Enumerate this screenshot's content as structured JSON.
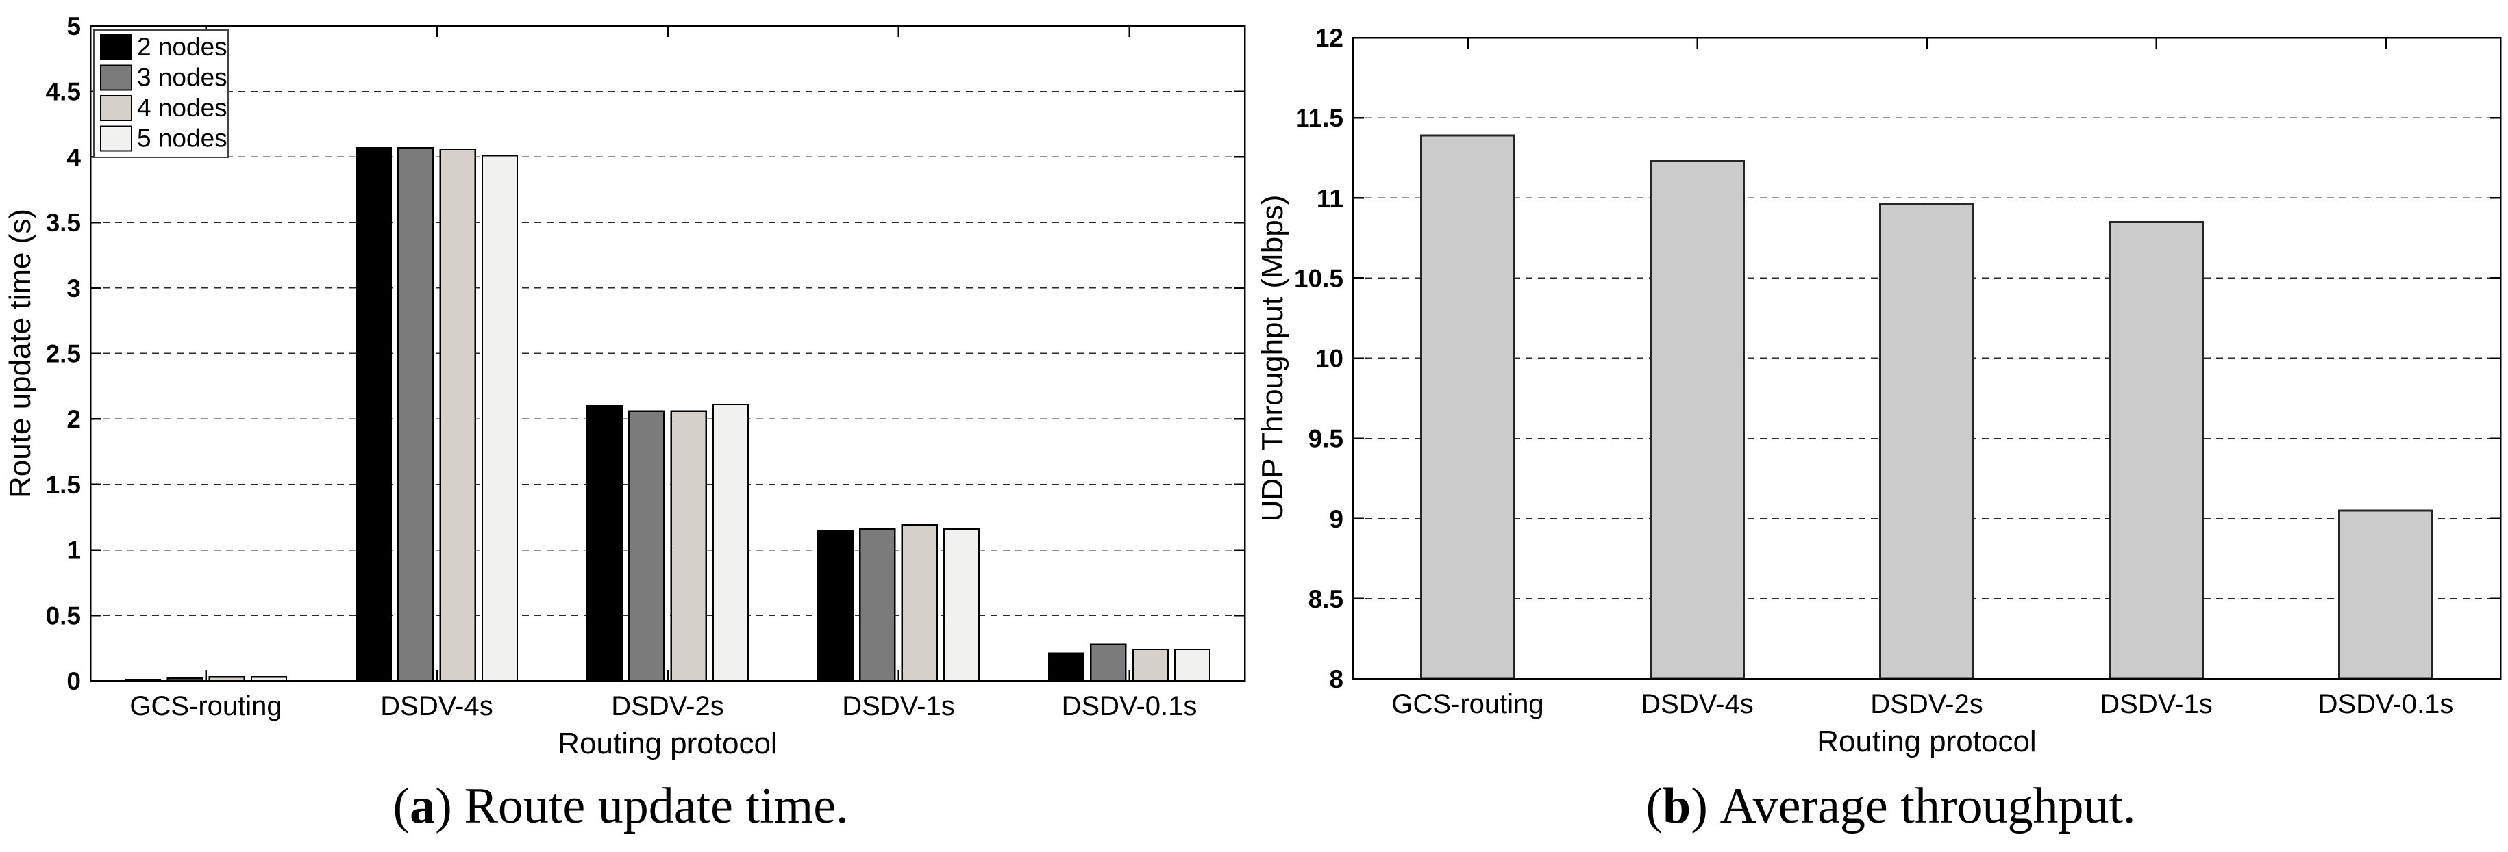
{
  "figure": {
    "captions": {
      "a": {
        "open": "(",
        "letter": "a",
        "close": ")",
        "text": "Route update time."
      },
      "b": {
        "open": "(",
        "letter": "b",
        "close": ")",
        "text": "Average throughput."
      }
    }
  },
  "style": {
    "axis_color": "#000000",
    "grid_color": "#2a2a2a",
    "background": "#ffffff"
  },
  "chart_data": [
    {
      "id": "route-update-time",
      "type": "bar",
      "title": "",
      "xlabel": "Routing protocol",
      "ylabel": "Route update time (s)",
      "categories": [
        "GCS-routing",
        "DSDV-4s",
        "DSDV-2s",
        "DSDV-1s",
        "DSDV-0.1s"
      ],
      "series": [
        {
          "name": "2 nodes",
          "color": "#000000",
          "values": [
            0.01,
            4.07,
            2.1,
            1.15,
            0.21
          ]
        },
        {
          "name": "3 nodes",
          "color": "#7b7b7b",
          "values": [
            0.02,
            4.07,
            2.06,
            1.16,
            0.28
          ]
        },
        {
          "name": "4 nodes",
          "color": "#d5d1c8",
          "values": [
            0.03,
            4.06,
            2.06,
            1.19,
            0.24
          ]
        },
        {
          "name": "5 nodes",
          "color": "#f1f1ef",
          "values": [
            0.03,
            4.01,
            2.11,
            1.16,
            0.24
          ]
        }
      ],
      "bar_edge_color": "#000000",
      "ylim": [
        0,
        5
      ],
      "ytick_step": 0.5,
      "ytick_labels": [
        "0",
        "0.5",
        "1",
        "1.5",
        "2",
        "2.5",
        "3",
        "3.5",
        "4",
        "4.5",
        "5"
      ],
      "grid": "dashed-horizontal",
      "legend_position": "top-left"
    },
    {
      "id": "udp-throughput",
      "type": "bar",
      "title": "",
      "xlabel": "Routing protocol",
      "ylabel": "UDP Throughput (Mbps)",
      "categories": [
        "GCS-routing",
        "DSDV-4s",
        "DSDV-2s",
        "DSDV-1s",
        "DSDV-0.1s"
      ],
      "values": [
        11.39,
        11.23,
        10.96,
        10.85,
        9.05
      ],
      "bar_color": "#cbcbcb",
      "bar_edge_color": "#262626",
      "ylim": [
        8,
        12
      ],
      "ytick_step": 0.5,
      "ytick_labels": [
        "8",
        "8.5",
        "9",
        "9.5",
        "10",
        "10.5",
        "11",
        "11.5",
        "12"
      ],
      "grid": "dashed-horizontal",
      "legend_position": "none"
    }
  ]
}
